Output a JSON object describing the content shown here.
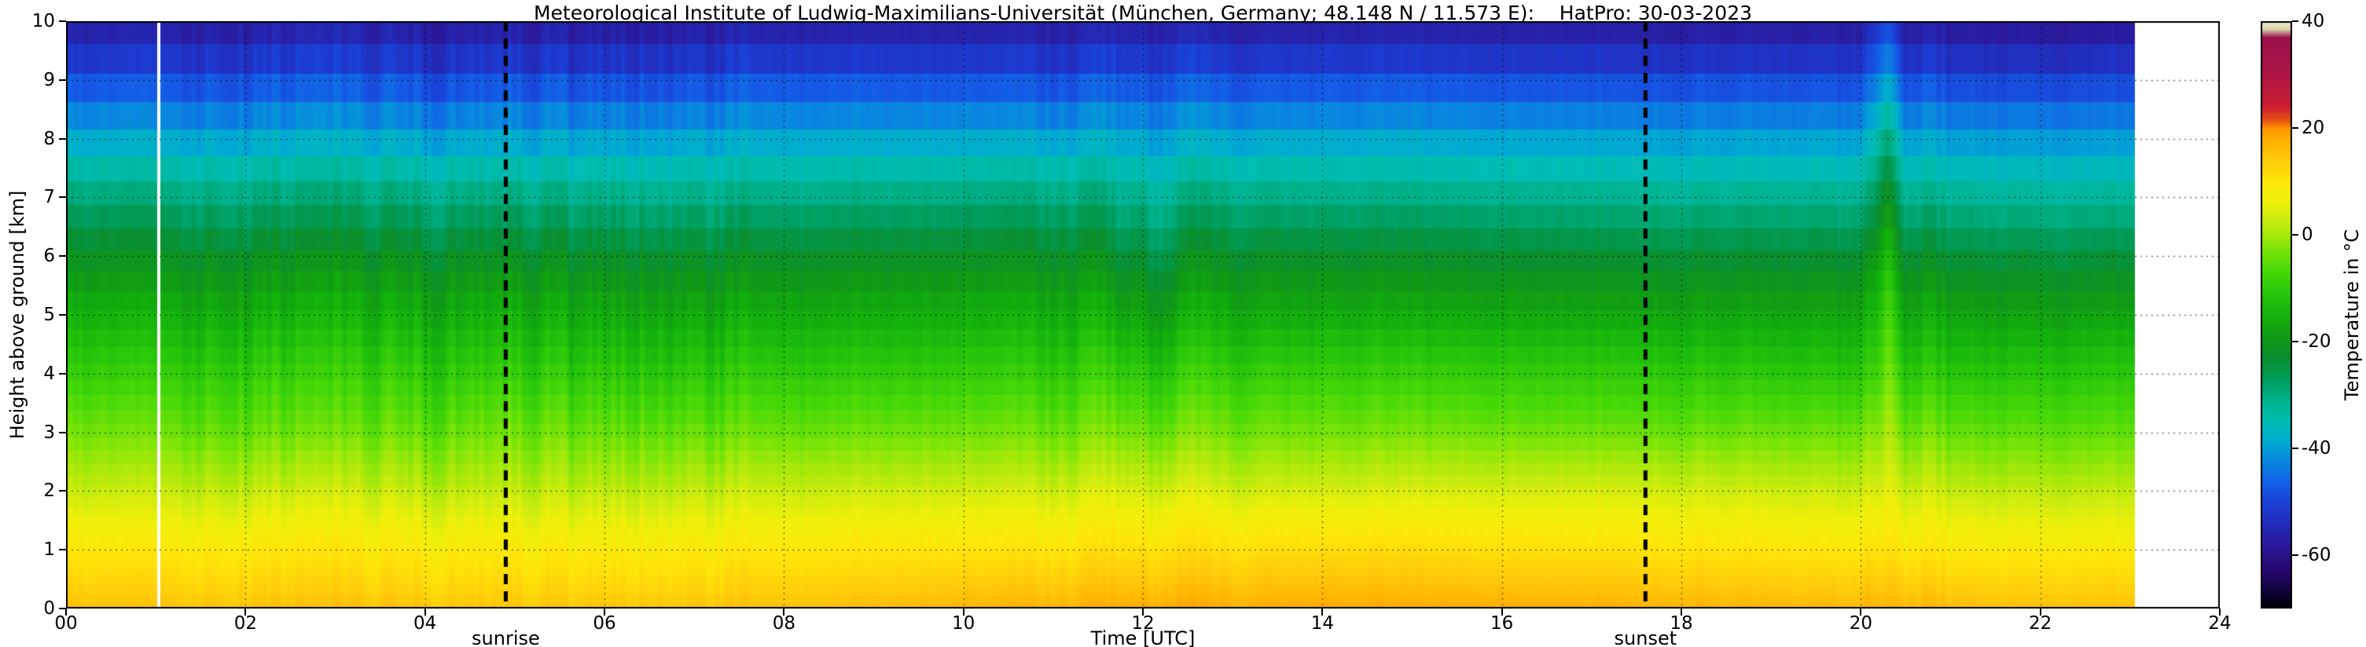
{
  "chart_data": {
    "type": "heatmap",
    "title": "Meteorological Institute of Ludwig-Maximilians-Universität (München, Germany; 48.148 N / 11.573 E):    HatPro: 30-03-2023",
    "xlabel": "Time [UTC]",
    "ylabel": "Height above ground [km]",
    "colorbar_label": "Temperature in  °C",
    "xlim": [
      0,
      24
    ],
    "ylim": [
      0,
      10
    ],
    "grid": true,
    "x_tick_labels": [
      "00",
      "02",
      "04",
      "06",
      "08",
      "10",
      "12",
      "14",
      "16",
      "18",
      "20",
      "22",
      "24"
    ],
    "y_tick_labels": [
      "0",
      "1",
      "2",
      "3",
      "4",
      "5",
      "6",
      "7",
      "8",
      "9",
      "10"
    ],
    "colorbar_tick_values": [
      40,
      20,
      0,
      -20,
      -40,
      -60
    ],
    "colorbar_range": [
      40,
      -70
    ],
    "data_end_time": 23.05,
    "gap_time": 1.03,
    "sunrise": {
      "time": 4.9,
      "label": "sunrise"
    },
    "sunset": {
      "time": 17.6,
      "label": "sunset"
    },
    "colormap_stops": [
      [
        -70,
        "#000000"
      ],
      [
        -67,
        "#10033a"
      ],
      [
        -63,
        "#26086e"
      ],
      [
        -59,
        "#2a1694"
      ],
      [
        -55,
        "#2428b4"
      ],
      [
        -51,
        "#1c3cd2"
      ],
      [
        -47,
        "#145ce6"
      ],
      [
        -43,
        "#0a82e0"
      ],
      [
        -39,
        "#00aad2"
      ],
      [
        -35,
        "#00bdb4"
      ],
      [
        -31,
        "#00b28c"
      ],
      [
        -27,
        "#009c5a"
      ],
      [
        -23,
        "#0a8f2e"
      ],
      [
        -19,
        "#0f9c14"
      ],
      [
        -15,
        "#14b20c"
      ],
      [
        -11,
        "#28c60a"
      ],
      [
        -7,
        "#46d808"
      ],
      [
        -3,
        "#78e408"
      ],
      [
        0,
        "#a5e80a"
      ],
      [
        3,
        "#cdec0f"
      ],
      [
        6,
        "#eef00a"
      ],
      [
        10,
        "#ffe60a"
      ],
      [
        14,
        "#ffcc0a"
      ],
      [
        18,
        "#ffae00"
      ],
      [
        20,
        "#ff9600"
      ],
      [
        21.5,
        "#e65014"
      ],
      [
        24,
        "#cd1e32"
      ],
      [
        31,
        "#aa1446"
      ],
      [
        37,
        "#99104b"
      ],
      [
        38.5,
        "#d8d2a8"
      ],
      [
        40,
        "#efedd2"
      ]
    ],
    "profiles": {
      "times": [
        0,
        3,
        4.9,
        8,
        11,
        14,
        17.6,
        20,
        23.05
      ],
      "heights_km": [
        0,
        1,
        2,
        3,
        4,
        5,
        6,
        7,
        8,
        9,
        10
      ],
      "temps_c_by_time": [
        [
          15,
          9,
          2,
          -4,
          -10,
          -16,
          -23,
          -31,
          -41,
          -51,
          -59
        ],
        [
          15,
          9,
          2,
          -5,
          -10,
          -16,
          -23,
          -31,
          -41,
          -51,
          -59
        ],
        [
          14,
          8,
          1,
          -5,
          -11,
          -17,
          -24,
          -32,
          -42,
          -52,
          -60
        ],
        [
          15,
          9,
          2,
          -5,
          -11,
          -17,
          -24,
          -32,
          -41,
          -51,
          -59
        ],
        [
          17,
          10,
          3,
          -4,
          -10,
          -16,
          -23,
          -31,
          -41,
          -51,
          -59
        ],
        [
          18,
          11,
          3,
          -4,
          -10,
          -17,
          -24,
          -32,
          -41,
          -51,
          -59
        ],
        [
          17,
          10,
          3,
          -5,
          -11,
          -18,
          -25,
          -33,
          -42,
          -52,
          -60
        ],
        [
          16,
          9,
          2,
          -5,
          -12,
          -18,
          -25,
          -33,
          -42,
          -52,
          -60
        ],
        [
          15,
          8,
          1,
          -6,
          -12,
          -19,
          -26,
          -34,
          -43,
          -53,
          -61
        ]
      ]
    },
    "noise": {
      "base": 0.8,
      "envelopes": [
        {
          "from": 1.3,
          "to": 7.6,
          "amp": 2.3
        },
        {
          "from": 10.8,
          "to": 13.2,
          "amp": 1.7
        },
        {
          "from": 19.9,
          "to": 21.0,
          "amp": 2.0
        }
      ]
    },
    "anomalies": [
      {
        "time": 20.28,
        "width": 0.1,
        "z": 8.8,
        "spread": 2.8,
        "amp": 8
      },
      {
        "time": 20.3,
        "width": 0.07,
        "z": 5.0,
        "spread": 1.8,
        "amp": 5
      },
      {
        "time": 12.2,
        "width": 0.18,
        "z": 5.6,
        "spread": 1.6,
        "amp": -3.5
      },
      {
        "time": 11.75,
        "width": 0.1,
        "z": 5.8,
        "spread": 1.4,
        "amp": -3
      }
    ]
  }
}
